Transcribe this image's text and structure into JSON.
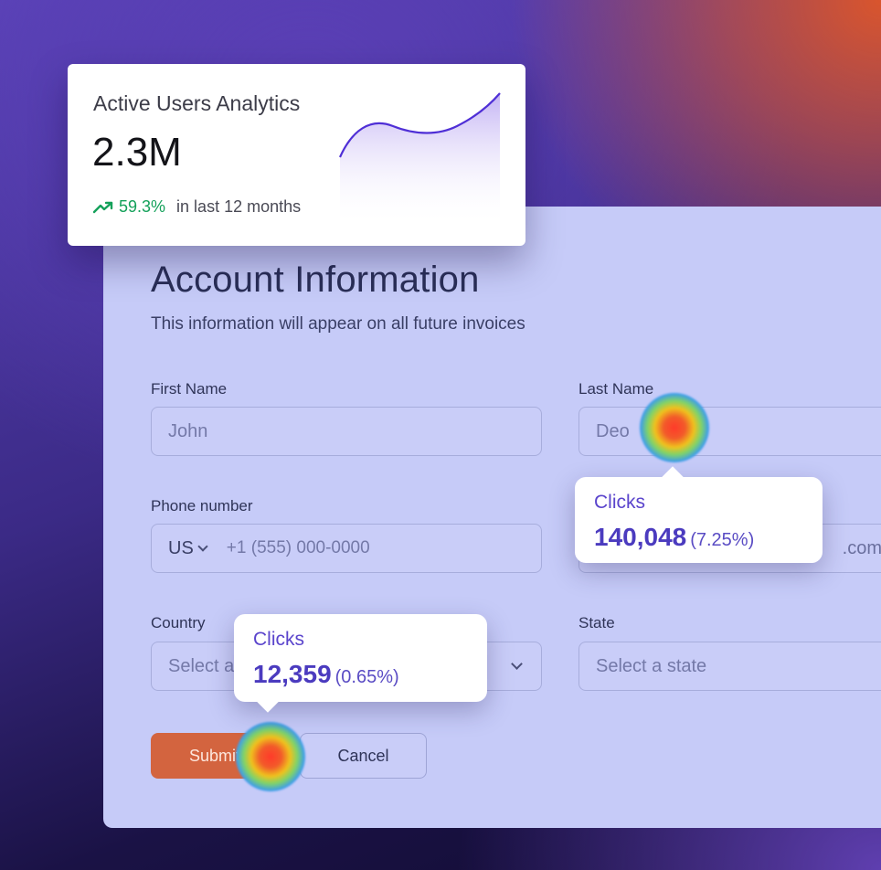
{
  "analytics": {
    "title": "Active Users Analytics",
    "value": "2.3M",
    "trend_percent": "59.3%",
    "trend_period": "in last 12 months"
  },
  "form": {
    "title": "Account Information",
    "subtitle": "This information will appear on all future invoices",
    "first_name": {
      "label": "First Name",
      "placeholder": "John"
    },
    "last_name": {
      "label": "Last Name",
      "placeholder": "Deo"
    },
    "phone": {
      "label": "Phone number",
      "country_code": "US",
      "placeholder": "+1 (555) 000-0000"
    },
    "email_partial": ".com",
    "country": {
      "label": "Country",
      "placeholder": "Select a"
    },
    "state": {
      "label": "State",
      "placeholder": "Select a state"
    },
    "submit_label": "Submit",
    "cancel_label": "Cancel"
  },
  "tooltips": {
    "last_name": {
      "label": "Clicks",
      "value": "140,048",
      "percent": "(7.25%)"
    },
    "submit": {
      "label": "Clicks",
      "value": "12,359",
      "percent": "(0.65%)"
    }
  },
  "colors": {
    "accent": "#5a44cc",
    "trend_positive": "#14a15a",
    "submit_button": "#d3643f",
    "form_background": "#c6cbf8"
  }
}
